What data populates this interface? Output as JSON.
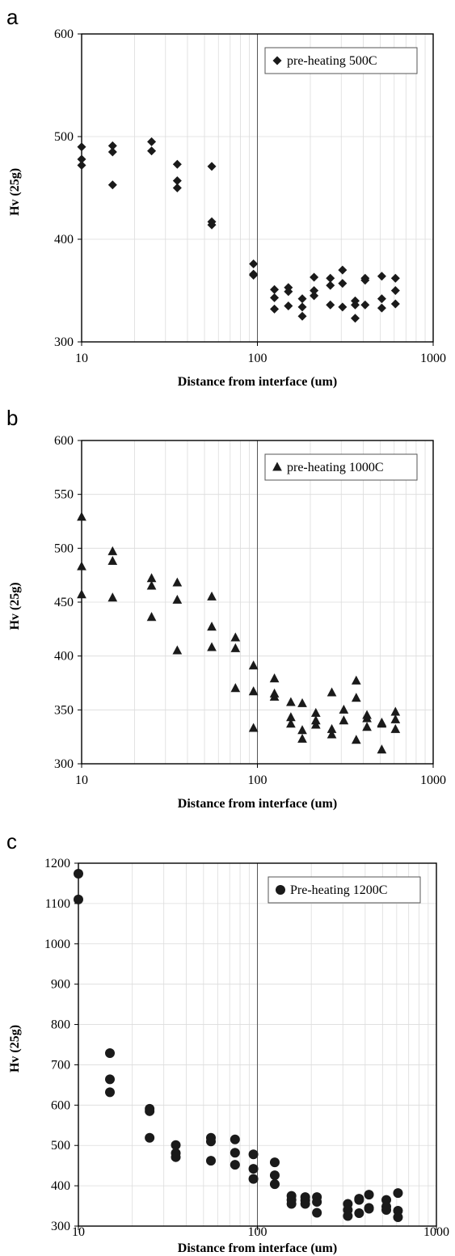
{
  "chart_data": [
    {
      "type": "scatter",
      "panel_label": "a",
      "xlabel": "Distance from interface (um)",
      "ylabel": "Hv (25g)",
      "xscale": "log",
      "xlim": [
        10,
        1000
      ],
      "ylim": [
        300,
        600
      ],
      "x_ticks": [
        "10",
        "100",
        "1000"
      ],
      "y_ticks": [
        "300",
        "400",
        "500",
        "600"
      ],
      "grid": true,
      "legend_position": "top-right",
      "series": [
        {
          "name": "pre-heating 500C",
          "marker": "diamond",
          "color": "#1a1a1a",
          "points": [
            [
              10,
              490
            ],
            [
              10,
              478
            ],
            [
              10,
              472
            ],
            [
              15,
              491
            ],
            [
              15,
              485
            ],
            [
              15,
              453
            ],
            [
              25,
              495
            ],
            [
              25,
              486
            ],
            [
              35,
              473
            ],
            [
              35,
              457
            ],
            [
              35,
              450
            ],
            [
              55,
              471
            ],
            [
              55,
              417
            ],
            [
              55,
              414
            ],
            [
              95,
              376
            ],
            [
              95,
              366
            ],
            [
              95,
              365
            ],
            [
              125,
              351
            ],
            [
              125,
              343
            ],
            [
              125,
              332
            ],
            [
              150,
              353
            ],
            [
              150,
              349
            ],
            [
              150,
              335
            ],
            [
              180,
              342
            ],
            [
              180,
              334
            ],
            [
              180,
              325
            ],
            [
              210,
              363
            ],
            [
              210,
              350
            ],
            [
              210,
              345
            ],
            [
              260,
              362
            ],
            [
              260,
              355
            ],
            [
              260,
              336
            ],
            [
              305,
              370
            ],
            [
              305,
              357
            ],
            [
              305,
              334
            ],
            [
              360,
              340
            ],
            [
              360,
              336
            ],
            [
              360,
              323
            ],
            [
              410,
              362
            ],
            [
              410,
              360
            ],
            [
              410,
              336
            ],
            [
              510,
              364
            ],
            [
              510,
              342
            ],
            [
              510,
              333
            ],
            [
              610,
              362
            ],
            [
              610,
              350
            ],
            [
              610,
              337
            ]
          ]
        }
      ]
    },
    {
      "type": "scatter",
      "panel_label": "b",
      "xlabel": "Distance from interface (um)",
      "ylabel": "Hv (25g)",
      "xscale": "log",
      "xlim": [
        10,
        1000
      ],
      "ylim": [
        300,
        600
      ],
      "x_ticks": [
        "10",
        "100",
        "1000"
      ],
      "y_ticks": [
        "300",
        "350",
        "400",
        "450",
        "500",
        "550",
        "600"
      ],
      "grid": true,
      "legend_position": "top-right",
      "series": [
        {
          "name": "pre-heating 1000C",
          "marker": "triangle",
          "color": "#1a1a1a",
          "points": [
            [
              10,
              529
            ],
            [
              10,
              483
            ],
            [
              10,
              457
            ],
            [
              15,
              497
            ],
            [
              15,
              488
            ],
            [
              15,
              454
            ],
            [
              25,
              472
            ],
            [
              25,
              465
            ],
            [
              25,
              436
            ],
            [
              35,
              468
            ],
            [
              35,
              452
            ],
            [
              35,
              405
            ],
            [
              55,
              455
            ],
            [
              55,
              427
            ],
            [
              55,
              408
            ],
            [
              75,
              417
            ],
            [
              75,
              407
            ],
            [
              75,
              370
            ],
            [
              95,
              391
            ],
            [
              95,
              367
            ],
            [
              95,
              333
            ],
            [
              125,
              379
            ],
            [
              125,
              365
            ],
            [
              125,
              362
            ],
            [
              155,
              357
            ],
            [
              155,
              343
            ],
            [
              155,
              337
            ],
            [
              180,
              356
            ],
            [
              180,
              331
            ],
            [
              180,
              323
            ],
            [
              215,
              347
            ],
            [
              215,
              340
            ],
            [
              215,
              336
            ],
            [
              265,
              366
            ],
            [
              265,
              332
            ],
            [
              265,
              327
            ],
            [
              310,
              350
            ],
            [
              310,
              340
            ],
            [
              365,
              377
            ],
            [
              365,
              361
            ],
            [
              365,
              322
            ],
            [
              420,
              345
            ],
            [
              420,
              342
            ],
            [
              420,
              334
            ],
            [
              510,
              338
            ],
            [
              510,
              337
            ],
            [
              510,
              313
            ],
            [
              610,
              348
            ],
            [
              610,
              341
            ],
            [
              610,
              332
            ]
          ]
        }
      ]
    },
    {
      "type": "scatter",
      "panel_label": "c",
      "xlabel": "Distance from interface (um)",
      "ylabel": "Hv (25g)",
      "xscale": "log",
      "xlim": [
        10,
        1000
      ],
      "ylim": [
        300,
        1200
      ],
      "x_ticks": [
        "10",
        "100",
        "1000"
      ],
      "y_ticks": [
        "300",
        "400",
        "500",
        "600",
        "700",
        "800",
        "900",
        "1000",
        "1100",
        "1200"
      ],
      "grid": true,
      "legend_position": "top-right",
      "series": [
        {
          "name": "Pre-heating 1200C",
          "marker": "circle",
          "color": "#1a1a1a",
          "points": [
            [
              10,
              1174
            ],
            [
              10,
              1110
            ],
            [
              15,
              729
            ],
            [
              15,
              664
            ],
            [
              15,
              632
            ],
            [
              25,
              591
            ],
            [
              25,
              585
            ],
            [
              25,
              519
            ],
            [
              35,
              501
            ],
            [
              35,
              481
            ],
            [
              35,
              471
            ],
            [
              55,
              519
            ],
            [
              55,
              510
            ],
            [
              55,
              462
            ],
            [
              75,
              515
            ],
            [
              75,
              482
            ],
            [
              75,
              452
            ],
            [
              95,
              478
            ],
            [
              95,
              442
            ],
            [
              95,
              417
            ],
            [
              125,
              458
            ],
            [
              125,
              426
            ],
            [
              125,
              404
            ],
            [
              155,
              375
            ],
            [
              155,
              365
            ],
            [
              155,
              355
            ],
            [
              185,
              372
            ],
            [
              185,
              364
            ],
            [
              185,
              355
            ],
            [
              215,
              372
            ],
            [
              215,
              360
            ],
            [
              215,
              333
            ],
            [
              320,
              355
            ],
            [
              320,
              340
            ],
            [
              320,
              325
            ],
            [
              370,
              368
            ],
            [
              370,
              365
            ],
            [
              370,
              332
            ],
            [
              420,
              378
            ],
            [
              420,
              345
            ],
            [
              420,
              343
            ],
            [
              525,
              365
            ],
            [
              525,
              348
            ],
            [
              525,
              340
            ],
            [
              610,
              382
            ],
            [
              610,
              338
            ],
            [
              610,
              322
            ]
          ]
        }
      ]
    }
  ]
}
